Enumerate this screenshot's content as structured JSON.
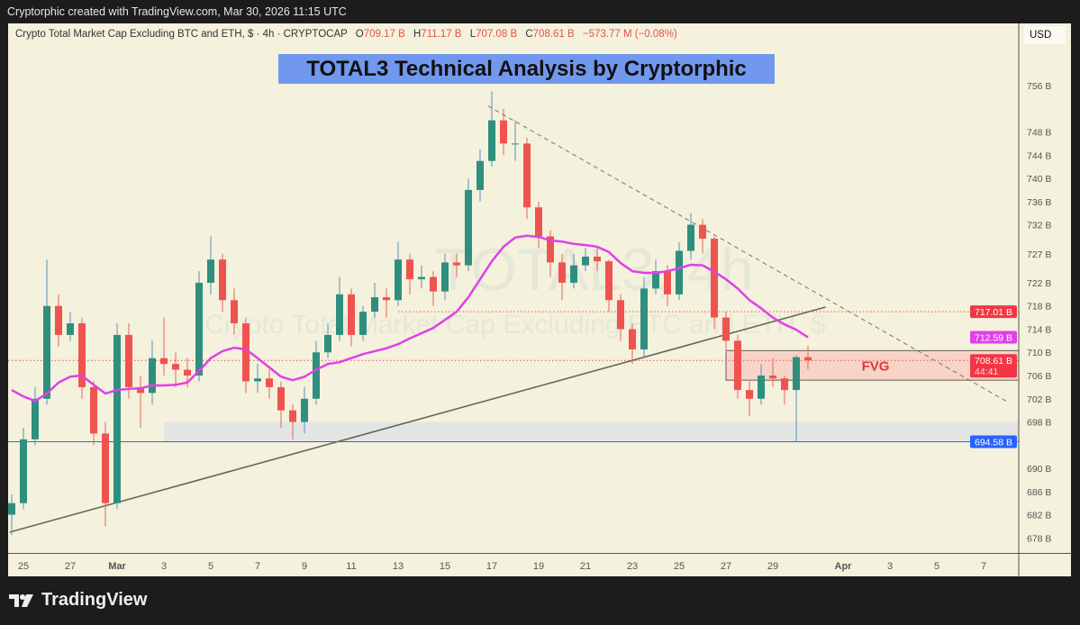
{
  "topbar": {
    "text": "Cryptorphic created with TradingView.com, Mar 30, 2026 11:15 UTC"
  },
  "legend": {
    "symbol": "Crypto Total Market Cap Excluding BTC and ETH, $ · 4h · CRYPTOCAP",
    "o_label": "O",
    "o": "709.17 B",
    "h_label": "H",
    "h": "711.17 B",
    "l_label": "L",
    "l": "707.08 B",
    "c_label": "C",
    "c": "708.61 B",
    "change": "−573.77 M (−0.08%)"
  },
  "currency": "USD",
  "banner": "TOTAL3 Technical Analysis by Cryptorphic",
  "watermark": {
    "line1": "TOTAL3, 4h",
    "line2": "Crypto Total Market Cap Excluding BTC and ETH, $"
  },
  "footer": {
    "brand": "TradingView"
  },
  "colors": {
    "up": "#2f8f7f",
    "down": "#ef5350",
    "ma": "#e040e8",
    "support": "#2962ff",
    "resistance": "#f23645",
    "fvg": "#f7c9c0",
    "banner": "#7298ee",
    "background": "#f4f1dc"
  },
  "chart_data": {
    "type": "candlestick",
    "title": "TOTAL3 Technical Analysis by Cryptorphic",
    "unit": "B",
    "ylim": [
      676,
      762
    ],
    "y_ticks": [
      756,
      748,
      744,
      740,
      736,
      732,
      727,
      722,
      718,
      714,
      710,
      706,
      702,
      698,
      690,
      686,
      682,
      678
    ],
    "x_ticks": [
      {
        "label": "25",
        "date": "2026-02-25"
      },
      {
        "label": "27",
        "date": "2026-02-27"
      },
      {
        "label": "Mar",
        "date": "2026-03-01"
      },
      {
        "label": "3",
        "date": "2026-03-03"
      },
      {
        "label": "5",
        "date": "2026-03-05"
      },
      {
        "label": "7",
        "date": "2026-03-07"
      },
      {
        "label": "9",
        "date": "2026-03-09"
      },
      {
        "label": "11",
        "date": "2026-03-11"
      },
      {
        "label": "13",
        "date": "2026-03-13"
      },
      {
        "label": "15",
        "date": "2026-03-15"
      },
      {
        "label": "17",
        "date": "2026-03-17"
      },
      {
        "label": "19",
        "date": "2026-03-19"
      },
      {
        "label": "21",
        "date": "2026-03-21"
      },
      {
        "label": "23",
        "date": "2026-03-23"
      },
      {
        "label": "25",
        "date": "2026-03-25"
      },
      {
        "label": "27",
        "date": "2026-03-27"
      },
      {
        "label": "29",
        "date": "2026-03-29"
      },
      {
        "label": "Apr",
        "date": "2026-04-01"
      },
      {
        "label": "3",
        "date": "2026-04-03"
      },
      {
        "label": "5",
        "date": "2026-04-05"
      },
      {
        "label": "7",
        "date": "2026-04-07"
      }
    ],
    "candles_columns": [
      "time",
      "open",
      "high",
      "low",
      "close"
    ],
    "candles": [
      [
        "2026-02-24T12:00",
        682,
        685.5,
        678.5,
        684
      ],
      [
        "2026-02-25T00:00",
        684,
        697,
        683,
        695
      ],
      [
        "2026-02-25T12:00",
        695,
        704,
        694,
        702
      ],
      [
        "2026-02-26T00:00",
        702,
        726,
        701,
        718
      ],
      [
        "2026-02-26T12:00",
        718,
        720,
        711,
        713
      ],
      [
        "2026-02-27T00:00",
        713,
        717,
        712,
        715
      ],
      [
        "2026-02-27T12:00",
        715,
        716,
        702,
        704
      ],
      [
        "2026-02-28T00:00",
        704,
        705,
        694,
        696
      ],
      [
        "2026-02-28T12:00",
        696,
        698,
        680,
        684
      ],
      [
        "2026-03-01T00:00",
        684,
        715,
        683,
        713
      ],
      [
        "2026-03-01T12:00",
        713,
        715,
        702,
        704
      ],
      [
        "2026-03-02T00:00",
        704,
        706,
        697,
        703
      ],
      [
        "2026-03-02T12:00",
        703,
        712,
        701,
        709
      ],
      [
        "2026-03-03T00:00",
        709,
        716,
        706,
        708
      ],
      [
        "2026-03-03T12:00",
        708,
        710,
        704,
        707
      ],
      [
        "2026-03-04T00:00",
        707,
        709,
        704,
        706
      ],
      [
        "2026-03-04T12:00",
        706,
        724,
        705,
        722
      ],
      [
        "2026-03-05T00:00",
        722,
        730,
        720,
        726
      ],
      [
        "2026-03-05T12:00",
        726,
        727,
        717,
        719
      ],
      [
        "2026-03-06T00:00",
        719,
        721,
        713,
        715
      ],
      [
        "2026-03-06T12:00",
        715,
        716,
        703,
        705
      ],
      [
        "2026-03-07T00:00",
        705,
        708,
        703,
        705.5
      ],
      [
        "2026-03-07T12:00",
        705.5,
        707,
        702,
        704
      ],
      [
        "2026-03-08T00:00",
        704,
        705,
        697,
        700
      ],
      [
        "2026-03-08T12:00",
        700,
        701,
        695,
        698
      ],
      [
        "2026-03-09T00:00",
        698,
        704,
        696,
        702
      ],
      [
        "2026-03-09T12:00",
        702,
        712,
        701,
        710
      ],
      [
        "2026-03-10T00:00",
        710,
        715,
        709,
        713
      ],
      [
        "2026-03-10T12:00",
        713,
        723,
        712,
        720
      ],
      [
        "2026-03-11T00:00",
        720,
        721,
        711,
        713
      ],
      [
        "2026-03-11T12:00",
        713,
        718,
        712,
        717
      ],
      [
        "2026-03-12T00:00",
        717,
        722,
        716,
        719.5
      ],
      [
        "2026-03-12T12:00",
        719.5,
        721,
        716,
        719
      ],
      [
        "2026-03-13T00:00",
        719,
        729,
        718,
        726
      ],
      [
        "2026-03-13T12:00",
        726,
        727,
        720,
        722.6
      ],
      [
        "2026-03-14T00:00",
        722.6,
        725,
        721,
        723
      ],
      [
        "2026-03-14T12:00",
        723,
        724,
        718,
        720.5
      ],
      [
        "2026-03-15T00:00",
        720.5,
        727,
        719,
        725.5
      ],
      [
        "2026-03-15T12:00",
        725.5,
        727,
        723,
        725
      ],
      [
        "2026-03-16T00:00",
        725,
        740,
        724,
        738
      ],
      [
        "2026-03-16T12:00",
        738,
        745,
        736,
        743
      ],
      [
        "2026-03-17T00:00",
        743,
        755,
        742,
        750
      ],
      [
        "2026-03-17T12:00",
        750,
        752,
        744,
        746
      ],
      [
        "2026-03-18T00:00",
        746,
        750,
        743,
        746
      ],
      [
        "2026-03-18T12:00",
        746,
        747,
        733,
        735
      ],
      [
        "2026-03-19T00:00",
        735,
        736,
        728,
        730
      ],
      [
        "2026-03-19T12:00",
        730,
        731,
        723,
        725.5
      ],
      [
        "2026-03-20T00:00",
        725.5,
        727,
        719,
        722
      ],
      [
        "2026-03-20T12:00",
        722,
        727,
        721,
        725
      ],
      [
        "2026-03-21T00:00",
        725,
        728,
        724,
        726.5
      ],
      [
        "2026-03-21T12:00",
        726.5,
        728,
        724,
        725.7
      ],
      [
        "2026-03-22T00:00",
        725.7,
        726,
        717,
        719
      ],
      [
        "2026-03-22T12:00",
        719,
        720,
        712,
        714
      ],
      [
        "2026-03-23T00:00",
        714,
        715,
        708,
        710.5
      ],
      [
        "2026-03-23T12:00",
        710.5,
        723,
        709,
        721
      ],
      [
        "2026-03-24T00:00",
        721,
        726,
        720,
        724
      ],
      [
        "2026-03-24T12:00",
        724,
        725,
        718,
        720
      ],
      [
        "2026-03-25T00:00",
        720,
        729,
        719,
        727.5
      ],
      [
        "2026-03-25T12:00",
        727.5,
        734,
        726,
        732
      ],
      [
        "2026-03-26T00:00",
        732,
        733,
        727,
        729.6
      ],
      [
        "2026-03-26T12:00",
        729.6,
        730,
        714,
        716
      ],
      [
        "2026-03-27T00:00",
        716,
        717,
        710,
        712
      ],
      [
        "2026-03-27T12:00",
        712,
        713,
        702,
        703.5
      ],
      [
        "2026-03-28T00:00",
        703.5,
        705,
        699,
        702
      ],
      [
        "2026-03-28T12:00",
        702,
        708,
        701,
        706
      ],
      [
        "2026-03-29T00:00",
        706,
        709,
        704,
        705.5
      ],
      [
        "2026-03-29T12:00",
        705.5,
        706,
        701,
        703.5
      ],
      [
        "2026-03-30T00:00",
        703.5,
        709.5,
        694.58,
        709.17
      ],
      [
        "2026-03-30T12:00",
        709.17,
        711.17,
        707.08,
        708.61
      ]
    ],
    "moving_average": [
      703.5,
      702.4,
      701.6,
      702.9,
      704.8,
      705.8,
      706,
      704.4,
      702.9,
      703.5,
      703.7,
      703.8,
      704.3,
      704.3,
      704.4,
      704.8,
      706.8,
      709,
      710.2,
      710.8,
      710.5,
      709,
      707.4,
      705.8,
      705.2,
      705.8,
      707,
      708,
      708.3,
      709,
      709.7,
      710.2,
      710.7,
      711.4,
      712.4,
      713.3,
      714.2,
      715.6,
      717,
      719.5,
      722.6,
      725.7,
      728.2,
      729.8,
      730.1,
      729.9,
      729.3,
      729.1,
      728.7,
      728.5,
      728.2,
      727.3,
      725.4,
      724,
      723.7,
      723.7,
      724,
      724.5,
      725.1,
      725,
      723.9,
      722.6,
      721,
      719,
      717.6,
      716,
      714.8,
      713.9,
      712.59
    ],
    "price_labels": [
      {
        "value": "717.01 B",
        "price": 717.01,
        "color": "#f23645",
        "line": "dotted"
      },
      {
        "value": "712.59 B",
        "price": 712.59,
        "color": "#e040e8",
        "line": "none"
      },
      {
        "value": "708.61 B",
        "sub": "44:41",
        "price": 708.61,
        "color": "#f23645",
        "line": "dotted"
      },
      {
        "value": "694.58 B",
        "price": 694.58,
        "color": "#2962ff",
        "line": "solid"
      }
    ],
    "annotations": {
      "fvg": {
        "label": "FVG",
        "from": "2026-03-27T00:00",
        "top": 710.3,
        "bottom": 705.2
      },
      "support_zone": {
        "from": "2026-03-03T00:00",
        "top": 698,
        "bottom": 694.58
      },
      "rising_trendline": [
        {
          "t": "2026-02-24T10:00",
          "p": 679
        },
        {
          "t": "2026-03-31T06:00",
          "p": 717.8
        }
      ],
      "descending_trendline": [
        {
          "t": "2026-03-16T20:00",
          "p": 752.5
        },
        {
          "t": "2026-04-08T00:00",
          "p": 701.5
        }
      ],
      "dotted_level": {
        "from": "2026-03-13T00:00",
        "price": 717.01
      }
    }
  }
}
